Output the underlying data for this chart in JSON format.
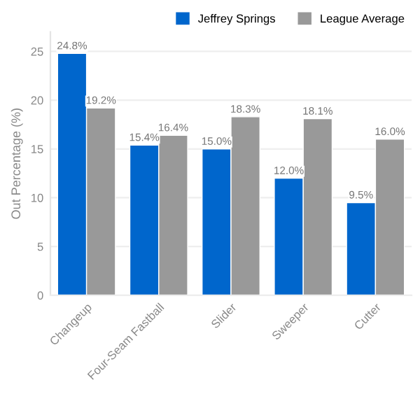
{
  "chart_data": {
    "type": "bar",
    "ylabel": "Out Percentage (%)",
    "categories": [
      "Changeup",
      "Four-Seam Fastball",
      "Slider",
      "Sweeper",
      "Cutter"
    ],
    "series": [
      {
        "name": "Jeffrey Springs",
        "color": "#0066cc",
        "values": [
          24.8,
          15.4,
          15.0,
          12.0,
          9.5
        ],
        "value_labels": [
          "24.8%",
          "15.4%",
          "15.0%",
          "12.0%",
          "9.5%"
        ]
      },
      {
        "name": "League Average",
        "color": "#999999",
        "values": [
          19.2,
          16.4,
          18.3,
          18.1,
          16.0
        ],
        "value_labels": [
          "19.2%",
          "16.4%",
          "18.3%",
          "18.1%",
          "16.0%"
        ]
      }
    ],
    "ylim": [
      0,
      27
    ],
    "yticks": [
      0,
      5,
      10,
      15,
      20,
      25
    ],
    "grid": "y",
    "legend": "top right"
  }
}
